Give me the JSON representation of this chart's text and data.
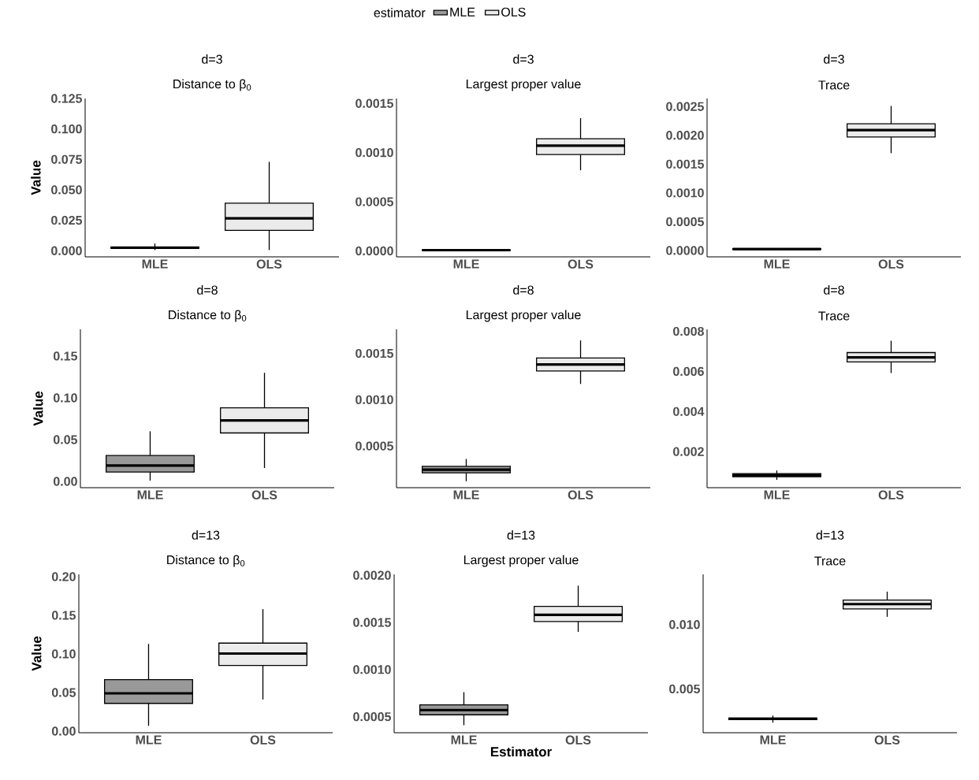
{
  "chart_data": [
    {
      "type": "box",
      "title": "d=3",
      "subtitle": "Distance to β$_{0}$",
      "ylabel": "Value",
      "legend": "top",
      "legend_title": "estimator",
      "categories": [
        "MLE",
        "OLS"
      ],
      "ylim": [
        -0.005,
        0.125
      ],
      "yticks": [
        {
          "value": 0,
          "label": "0.000"
        },
        {
          "value": 0.025,
          "label": "0.025"
        },
        {
          "value": 0.05,
          "label": "0.050"
        },
        {
          "value": 0.075,
          "label": "0.075"
        },
        {
          "value": 0.1,
          "label": "0.100"
        },
        {
          "value": 0.125,
          "label": "0.125"
        }
      ],
      "series": [
        {
          "name": "MLE",
          "color": "#999999",
          "boxes": [
            {
              "low": 0.0005,
              "q1": 0.002,
              "median": 0.0025,
              "q3": 0.003,
              "high": 0.006
            },
            null
          ]
        },
        {
          "name": "OLS",
          "color": "#ebebeb",
          "boxes": [
            null,
            {
              "low": 0.0006,
              "q1": 0.0168,
              "median": 0.0266,
              "q3": 0.039,
              "high": 0.073
            }
          ]
        }
      ]
    },
    {
      "type": "box",
      "title": "d=3",
      "subtitle": "Largest proper value",
      "categories": [
        "MLE",
        "OLS"
      ],
      "ylim": [
        -6e-05,
        0.00155
      ],
      "yticks": [
        {
          "value": 0,
          "label": "0.0000"
        },
        {
          "value": 0.0005,
          "label": "0.0005"
        },
        {
          "value": 0.001,
          "label": "0.0010"
        },
        {
          "value": 0.0015,
          "label": "0.0015"
        }
      ],
      "series": [
        {
          "color": "#999999",
          "boxes": [
            {
              "low": 2e-06,
              "q1": 6e-06,
              "median": 8e-06,
              "q3": 1e-05,
              "high": 1.6e-05
            },
            null
          ]
        },
        {
          "color": "#ebebeb",
          "boxes": [
            null,
            {
              "low": 0.00082,
              "q1": 0.00098,
              "median": 0.00107,
              "q3": 0.00114,
              "high": 0.00135
            }
          ]
        }
      ]
    },
    {
      "type": "box",
      "title": "d=3",
      "subtitle": "Trace",
      "categories": [
        "MLE",
        "OLS"
      ],
      "ylim": [
        -0.00011,
        0.00264
      ],
      "yticks": [
        {
          "value": 0,
          "label": "0.0000"
        },
        {
          "value": 0.0005,
          "label": "0.0005"
        },
        {
          "value": 0.001,
          "label": "0.0010"
        },
        {
          "value": 0.0015,
          "label": "0.0015"
        },
        {
          "value": 0.002,
          "label": "0.0020"
        },
        {
          "value": 0.0025,
          "label": "0.0025"
        }
      ],
      "series": [
        {
          "color": "#999999",
          "boxes": [
            {
              "low": 1e-05,
              "q1": 2e-05,
              "median": 2.5e-05,
              "q3": 3e-05,
              "high": 4e-05
            },
            null
          ]
        },
        {
          "color": "#ebebeb",
          "boxes": [
            null,
            {
              "low": 0.00169,
              "q1": 0.00197,
              "median": 0.00209,
              "q3": 0.0022,
              "high": 0.00251
            }
          ]
        }
      ]
    },
    {
      "type": "box",
      "title": "d=8",
      "subtitle": "Distance to β$_{0}$",
      "ylabel": "Value",
      "categories": [
        "MLE",
        "OLS"
      ],
      "ylim": [
        -0.0075,
        0.182
      ],
      "yticks": [
        {
          "value": 0,
          "label": "0.00"
        },
        {
          "value": 0.05,
          "label": "0.05"
        },
        {
          "value": 0.1,
          "label": "0.10"
        },
        {
          "value": 0.15,
          "label": "0.15"
        }
      ],
      "series": [
        {
          "color": "#999999",
          "boxes": [
            {
              "low": 0.001,
              "q1": 0.0113,
              "median": 0.019,
              "q3": 0.031,
              "high": 0.06
            },
            null
          ]
        },
        {
          "color": "#ebebeb",
          "boxes": [
            null,
            {
              "low": 0.016,
              "q1": 0.058,
              "median": 0.073,
              "q3": 0.088,
              "high": 0.13
            }
          ]
        }
      ]
    },
    {
      "type": "box",
      "title": "d=8",
      "subtitle": "Largest proper value",
      "categories": [
        "MLE",
        "OLS"
      ],
      "ylim": [
        5e-05,
        0.00176
      ],
      "yticks": [
        {
          "value": 0.0005,
          "label": "0.0005"
        },
        {
          "value": 0.001,
          "label": "0.0010"
        },
        {
          "value": 0.0015,
          "label": "0.0015"
        }
      ],
      "series": [
        {
          "color": "#999999",
          "boxes": [
            {
              "low": 0.00012,
              "q1": 0.00021,
              "median": 0.000244,
              "q3": 0.00028,
              "high": 0.00036
            },
            null
          ]
        },
        {
          "color": "#ebebeb",
          "boxes": [
            null,
            {
              "low": 0.00117,
              "q1": 0.00131,
              "median": 0.00138,
              "q3": 0.00145,
              "high": 0.00164
            }
          ]
        }
      ]
    },
    {
      "type": "box",
      "title": "d=8",
      "subtitle": "Trace",
      "categories": [
        "MLE",
        "OLS"
      ],
      "ylim": [
        0.0002,
        0.0081
      ],
      "yticks": [
        {
          "value": 0.002,
          "label": "0.002"
        },
        {
          "value": 0.004,
          "label": "0.004"
        },
        {
          "value": 0.006,
          "label": "0.006"
        },
        {
          "value": 0.008,
          "label": "0.008"
        }
      ],
      "series": [
        {
          "color": "#999999",
          "boxes": [
            {
              "low": 0.00059,
              "q1": 0.00075,
              "median": 0.00082,
              "q3": 0.0009,
              "high": 0.00106
            },
            null
          ]
        },
        {
          "color": "#ebebeb",
          "boxes": [
            null,
            {
              "low": 0.00592,
              "q1": 0.00647,
              "median": 0.0067,
              "q3": 0.00694,
              "high": 0.00753
            }
          ]
        }
      ]
    },
    {
      "type": "box",
      "title": "d=13",
      "subtitle": "Distance to β$_{0}$",
      "ylabel": "Value",
      "categories": [
        "MLE",
        "OLS"
      ],
      "ylim": [
        -0.002,
        0.203
      ],
      "yticks": [
        {
          "value": 0,
          "label": "0.00"
        },
        {
          "value": 0.05,
          "label": "0.05"
        },
        {
          "value": 0.1,
          "label": "0.10"
        },
        {
          "value": 0.15,
          "label": "0.15"
        },
        {
          "value": 0.2,
          "label": "0.20"
        }
      ],
      "series": [
        {
          "color": "#999999",
          "boxes": [
            {
              "low": 0.007,
              "q1": 0.036,
              "median": 0.049,
              "q3": 0.0667,
              "high": 0.113
            },
            null
          ]
        },
        {
          "color": "#ebebeb",
          "boxes": [
            null,
            {
              "low": 0.041,
              "q1": 0.085,
              "median": 0.1005,
              "q3": 0.114,
              "high": 0.158
            }
          ]
        }
      ]
    },
    {
      "type": "box",
      "title": "d=13",
      "subtitle": "Largest proper value",
      "xlabel": "Estimator",
      "categories": [
        "MLE",
        "OLS"
      ],
      "ylim": [
        0.00033,
        0.00201
      ],
      "yticks": [
        {
          "value": 0.0005,
          "label": "0.0005"
        },
        {
          "value": 0.001,
          "label": "0.0010"
        },
        {
          "value": 0.0015,
          "label": "0.0015"
        },
        {
          "value": 0.002,
          "label": "0.0020"
        }
      ],
      "series": [
        {
          "color": "#999999",
          "boxes": [
            {
              "low": 0.00041,
              "q1": 0.00052,
              "median": 0.00057,
              "q3": 0.000625,
              "high": 0.00076
            },
            null
          ]
        },
        {
          "color": "#ebebeb",
          "boxes": [
            null,
            {
              "low": 0.0014,
              "q1": 0.00151,
              "median": 0.00158,
              "q3": 0.00167,
              "high": 0.00189
            }
          ]
        }
      ]
    },
    {
      "type": "box",
      "title": "d=13",
      "subtitle": "Trace",
      "categories": [
        "MLE",
        "OLS"
      ],
      "ylim": [
        0.0016,
        0.0139
      ],
      "yticks": [
        {
          "value": 0.005,
          "label": "0.005"
        },
        {
          "value": 0.01,
          "label": "0.010"
        }
      ],
      "series": [
        {
          "color": "#999999",
          "boxes": [
            {
              "low": 0.00238,
              "q1": 0.00262,
              "median": 0.00268,
              "q3": 0.00274,
              "high": 0.00293
            },
            null
          ]
        },
        {
          "color": "#ebebeb",
          "boxes": [
            null,
            {
              "low": 0.0106,
              "q1": 0.01122,
              "median": 0.01159,
              "q3": 0.0119,
              "high": 0.01256
            }
          ]
        }
      ]
    }
  ]
}
